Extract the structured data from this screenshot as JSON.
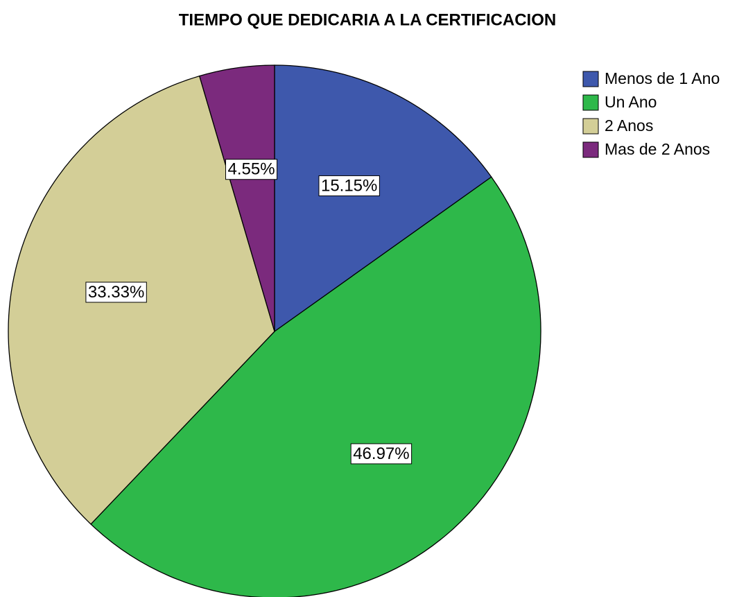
{
  "chart_data": {
    "type": "pie",
    "title": "TIEMPO QUE DEDICARIA A LA CERTIFICACION",
    "categories": [
      "Menos de 1 Ano",
      "Un Ano",
      "2 Anos",
      "Mas de 2 Anos"
    ],
    "values": [
      15.15,
      46.97,
      33.33,
      4.55
    ],
    "value_labels": [
      "15.15%",
      "46.97%",
      "33.33%",
      "4.55%"
    ],
    "colors": [
      "#3e58ac",
      "#2eb84a",
      "#d3ce97",
      "#7b2a7d"
    ],
    "legend": "top-right"
  }
}
